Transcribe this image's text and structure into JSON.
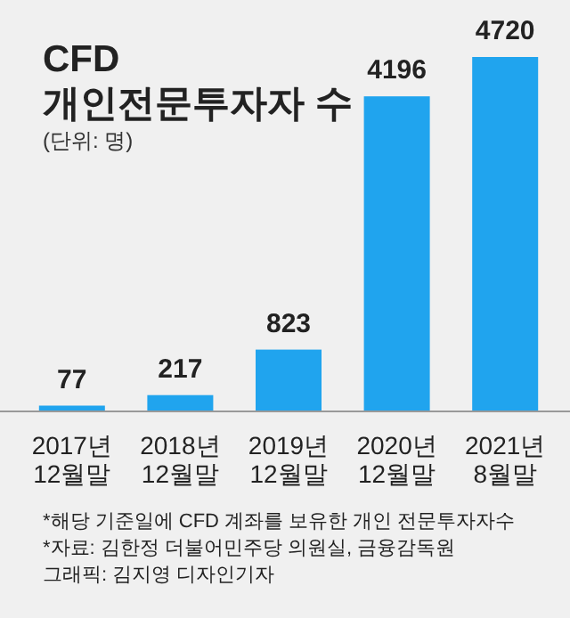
{
  "chart_data": {
    "type": "bar",
    "title": "CFD\n개인전문투자자 수",
    "subtitle": "(단위: 명)",
    "categories": [
      "2017년\n12월말",
      "2018년\n12월말",
      "2019년\n12월말",
      "2020년\n12월말",
      "2021년\n8월말"
    ],
    "values": [
      77,
      217,
      823,
      4196,
      4720
    ],
    "color": "#20a4ee",
    "data_labels": true,
    "annotations": [
      "*해당 기준일에 CFD 계좌를 보유한 개인 전문투자자수",
      "*자료: 김한정 더불어민주당 의원실, 금융감독원",
      "그래픽: 김지영 디자인기자"
    ]
  }
}
